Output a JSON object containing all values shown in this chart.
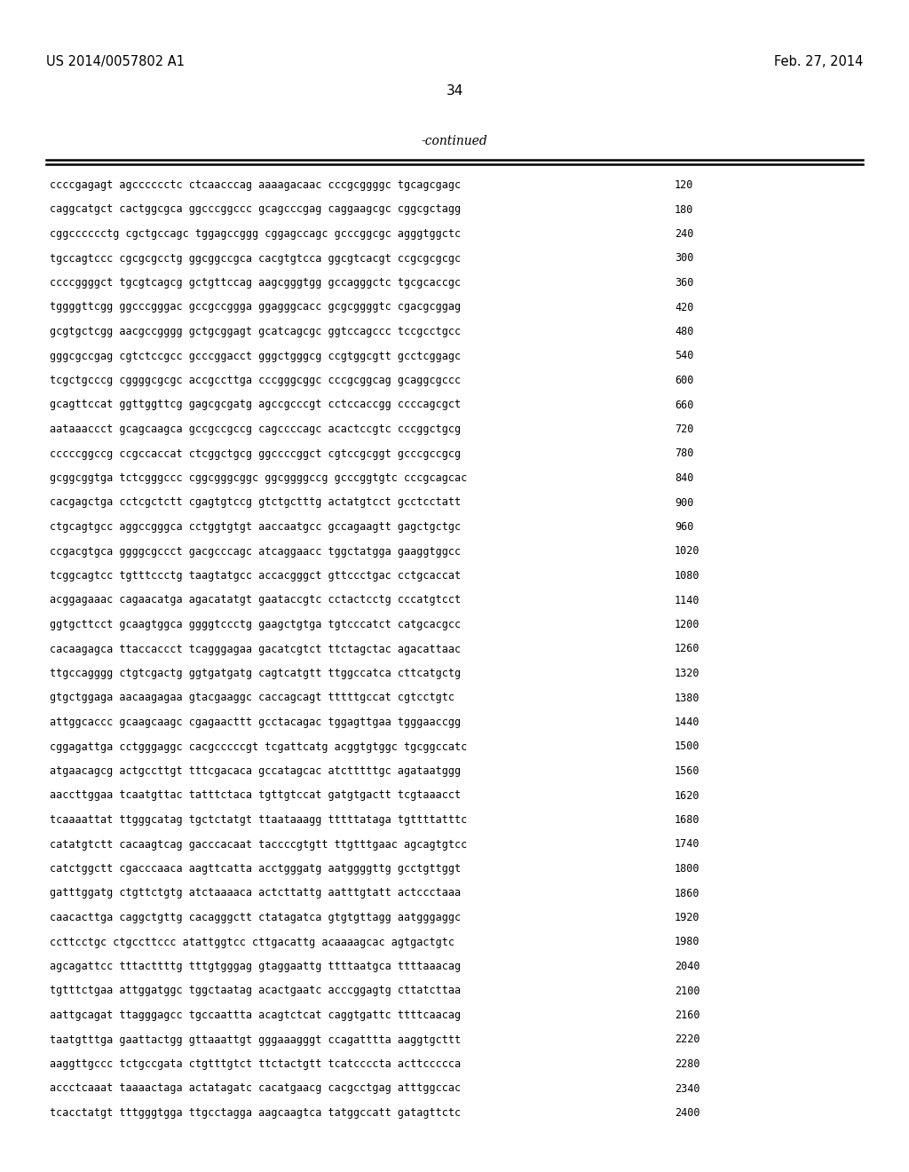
{
  "header_left": "US 2014/0057802 A1",
  "header_right": "Feb. 27, 2014",
  "page_number": "34",
  "continued_label": "-continued",
  "sequences": [
    [
      "ccccgagagt agcccccctc ctcaacccag aaaagacaac cccgcggggc tgcagcgagc",
      "120"
    ],
    [
      "caggcatgct cactggcgca ggcccggccc gcagcccgag caggaagcgc cggcgctagg",
      "180"
    ],
    [
      "cggcccccctg cgctgccagc tggagccggg cggagccagc gcccggcgc agggtggctc",
      "240"
    ],
    [
      "tgccagtccc cgcgcgcctg ggcggccgca cacgtgtcca ggcgtcacgt ccgcgcgcgc",
      "300"
    ],
    [
      "ccccggggct tgcgtcagcg gctgttccag aagcgggtgg gccagggctc tgcgcaccgc",
      "360"
    ],
    [
      "tggggttcgg ggcccgggac gccgccggga ggagggcacc gcgcggggtc cgacgcggag",
      "420"
    ],
    [
      "gcgtgctcgg aacgccgggg gctgcggagt gcatcagcgc ggtccagccc tccgcctgcc",
      "480"
    ],
    [
      "gggcgccgag cgtctccgcc gcccggacct gggctgggcg ccgtggcgtt gcctcggagc",
      "540"
    ],
    [
      "tcgctgcccg cggggcgcgc accgccttga cccgggcggc cccgcggcag gcaggcgccc",
      "600"
    ],
    [
      "gcagttccat ggttggttcg gagcgcgatg agccgcccgt cctccaccgg ccccagcgct",
      "660"
    ],
    [
      "aataaaccct gcagcaagca gccgccgccg cagccccagc acactccgtc cccggctgcg",
      "720"
    ],
    [
      "cccccggccg ccgccaccat ctcggctgcg ggccccggct cgtccgcggt gcccgccgcg",
      "780"
    ],
    [
      "gcggcggtga tctcgggccc cggcgggcggc ggcggggccg gcccggtgtc cccgcagcac",
      "840"
    ],
    [
      "cacgagctga cctcgctctt cgagtgtccg gtctgctttg actatgtcct gcctcctatt",
      "900"
    ],
    [
      "ctgcagtgcc aggccgggca cctggtgtgt aaccaatgcc gccagaagtt gagctgctgc",
      "960"
    ],
    [
      "ccgacgtgca ggggcgccct gacgcccagc atcaggaacc tggctatgga gaaggtggcc",
      "1020"
    ],
    [
      "tcggcagtcc tgtttccctg taagtatgcc accacgggct gttccctgac cctgcaccat",
      "1080"
    ],
    [
      "acggagaaac cagaacatga agacatatgt gaataccgtc cctactcctg cccatgtcct",
      "1140"
    ],
    [
      "ggtgcttcct gcaagtggca ggggtccctg gaagctgtga tgtcccatct catgcacgcc",
      "1200"
    ],
    [
      "cacaagagca ttaccaccct tcagggagaa gacatcgtct ttctagctac agacattaac",
      "1260"
    ],
    [
      "ttgccagggg ctgtcgactg ggtgatgatg cagtcatgtt ttggccatca cttcatgctg",
      "1320"
    ],
    [
      "gtgctggaga aacaagagaa gtacgaaggc caccagcagt tttttgccat cgtcctgtc",
      "1380"
    ],
    [
      "attggcaccc gcaagcaagc cgagaacttt gcctacagac tggagttgaa tgggaaccgg",
      "1440"
    ],
    [
      "cggagattga cctgggaggc cacgcccccgt tcgattcatg acggtgtggc tgcggccatc",
      "1500"
    ],
    [
      "atgaacagcg actgccttgt tttcgacaca gccatagcac atctttttgc agataatggg",
      "1560"
    ],
    [
      "aaccttggaa tcaatgttac tatttctaca tgttgtccat gatgtgactt tcgtaaacct",
      "1620"
    ],
    [
      "tcaaaattat ttgggcatag tgctctatgt ttaataaagg tttttataga tgttttatttc",
      "1680"
    ],
    [
      "catatgtctt cacaagtcag gacccacaat taccccgtgtt ttgtttgaac agcagtgtcc",
      "1740"
    ],
    [
      "catctggctt cgacccaaca aagttcatta acctgggatg aatggggttg gcctgttggt",
      "1800"
    ],
    [
      "gatttggatg ctgttctgtg atctaaaaca actcttattg aatttgtatt actccctaaa",
      "1860"
    ],
    [
      "caacacttga caggctgttg cacagggctt ctatagatca gtgtgttagg aatgggaggc",
      "1920"
    ],
    [
      "ccttcctgc ctgccttccc atattggtcc cttgacattg acaaaagcac agtgactgtc",
      "1980"
    ],
    [
      "agcagattcc tttacttttg tttgtgggag gtaggaattg ttttaatgca ttttaaacag",
      "2040"
    ],
    [
      "tgtttctgaa attggatggc tggctaatag acactgaatc acccggagtg cttatcttaa",
      "2100"
    ],
    [
      "aattgcagat ttagggagcc tgccaattta acagtctcat caggtgattc ttttcaacag",
      "2160"
    ],
    [
      "taatgtttga gaattactgg gttaaattgt gggaaagggt ccagatttta aaggtgcttt",
      "2220"
    ],
    [
      "aaggttgccc tctgccgata ctgtttgtct ttctactgtt tcatccccta acttccccca",
      "2280"
    ],
    [
      "accctcaaat taaaactaga actatagatc cacatgaacg cacgcctgag atttggccac",
      "2340"
    ],
    [
      "tcacctatgt tttgggtgga ttgcctagga aagcaagtca tatggccatt gatagttctc",
      "2400"
    ]
  ],
  "bg_color": "#ffffff",
  "text_color": "#000000"
}
